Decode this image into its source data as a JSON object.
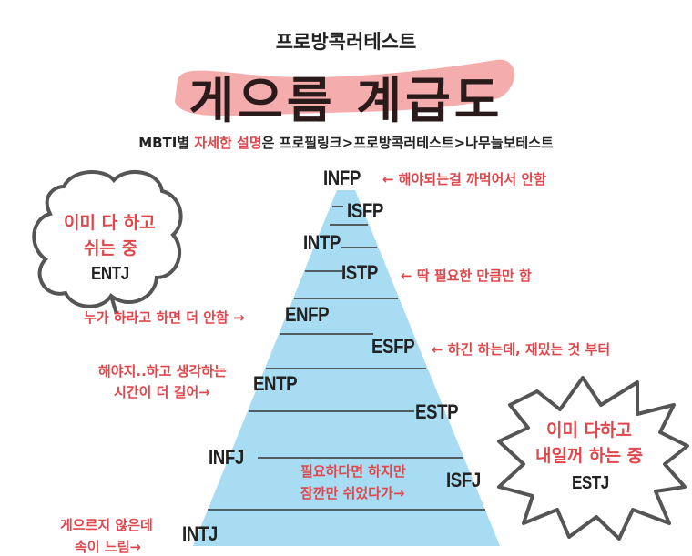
{
  "header": {
    "brand": "프로방콕러테스트",
    "title": "게으름 계급도",
    "subtitle_prefix": "MBTI별 ",
    "subtitle_highlight": "자세한 설명",
    "subtitle_suffix": "은 프로필링크>프로방콕러테스트>나무늘보테스트"
  },
  "colors": {
    "accent_red": "#e0474c",
    "pyramid_blue": "#a8dcf2",
    "brush_pink": "#f3a3a3"
  },
  "pyramid": [
    {
      "type": "INFP",
      "note": "← 해야되는걸 까먹어서 안함"
    },
    {
      "type": "ISFP"
    },
    {
      "type": "INTP"
    },
    {
      "type": "ISTP",
      "note": "← 딱 필요한 만큼만 함"
    },
    {
      "type": "ENFP",
      "note": "누가 하라고 하면 더 안함 →"
    },
    {
      "type": "ESFP",
      "note": "← 하긴 하는데, 재밌는 것 부터"
    },
    {
      "type": "ENTP",
      "note_line1": "해야지..하고 생각하는",
      "note_line2": "시간이 더 길어→"
    },
    {
      "type": "ESTP"
    },
    {
      "type": "INFJ"
    },
    {
      "type": "ISFJ",
      "note_line1": "필요하다면 하지만",
      "note_line2": "잠깐만 쉬었다가→"
    },
    {
      "type": "INTJ",
      "note_line1": "게으르지 않은데",
      "note_line2": "속이 느림→"
    }
  ],
  "cloud": {
    "line1": "이미 다 하고",
    "line2": "쉬는 중",
    "type": "ENTJ"
  },
  "burst": {
    "line1": "이미 다하고",
    "line2": "내일꺼 하는 중",
    "type": "ESTJ"
  }
}
